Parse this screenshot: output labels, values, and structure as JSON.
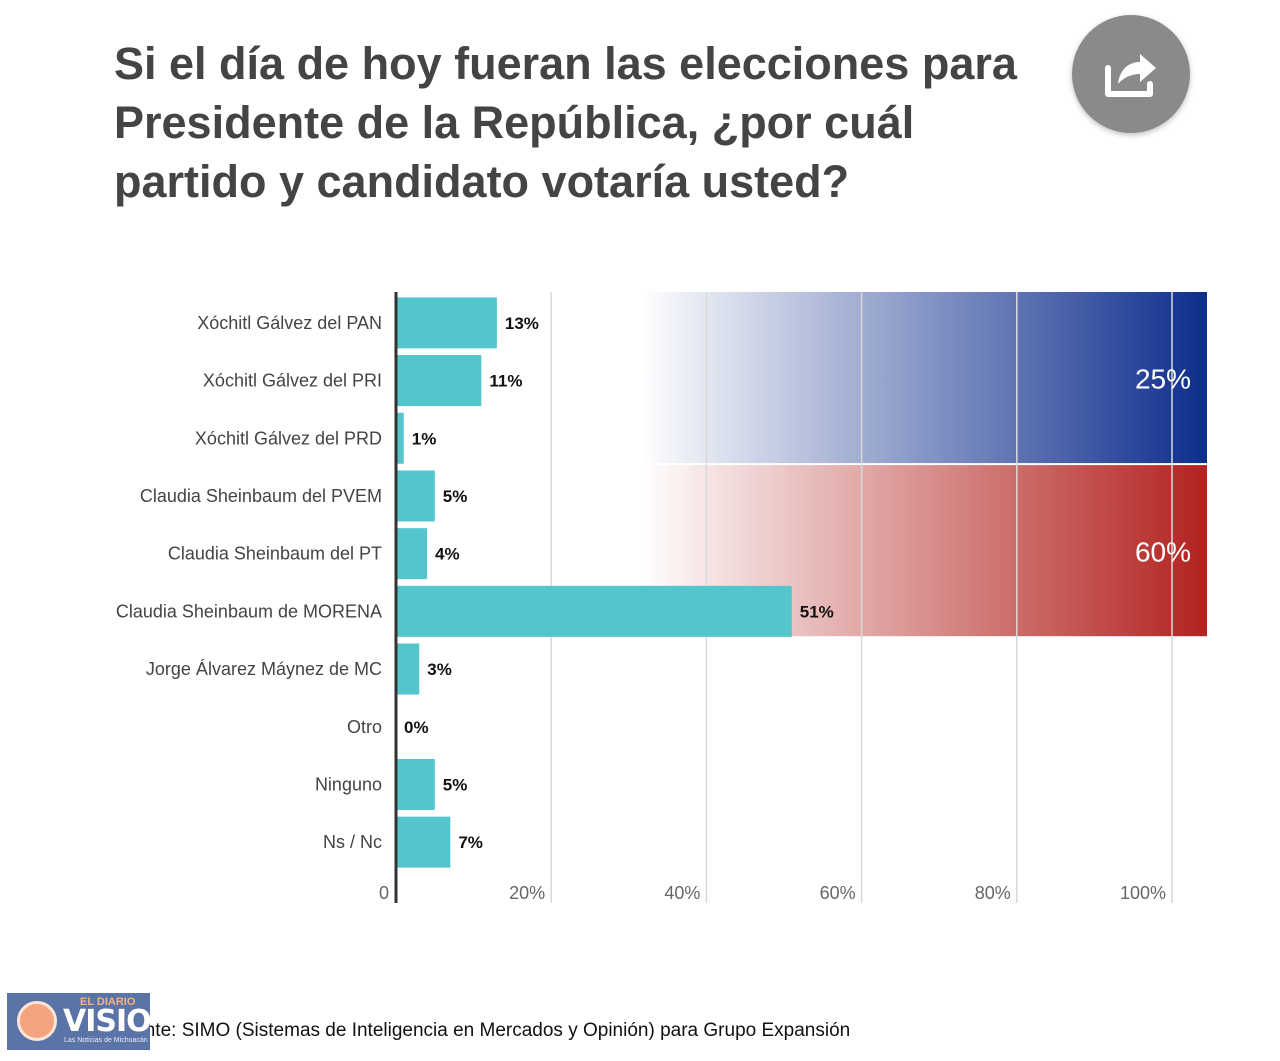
{
  "header": {
    "title": "Si el día de hoy fueran las elecciones para Presidente de la República, ¿por cuál partido y candidato votaría usted?"
  },
  "share_icon": "share-icon",
  "chart_data": {
    "type": "bar",
    "orientation": "horizontal",
    "title": "Si el día de hoy fueran las elecciones para Presidente de la República, ¿por cuál partido y candidato votaría usted?",
    "categories": [
      "Xóchitl Gálvez del PAN",
      "Xóchitl Gálvez del PRI",
      "Xóchitl Gálvez del PRD",
      "Claudia Sheinbaum del PVEM",
      "Claudia Sheinbaum del PT",
      "Claudia Sheinbaum de MORENA",
      "Jorge Álvarez Máynez de MC",
      "Otro",
      "Ninguno",
      "Ns / Nc"
    ],
    "values": [
      13,
      11,
      1,
      5,
      4,
      51,
      3,
      0,
      5,
      7
    ],
    "value_labels": [
      "13%",
      "11%",
      "1%",
      "5%",
      "4%",
      "51%",
      "3%",
      "0%",
      "5%",
      "7%"
    ],
    "bar_color": "#53c5cc",
    "xlim": [
      0,
      100
    ],
    "ticks": [
      0,
      20,
      40,
      60,
      80,
      100
    ],
    "tick_labels": [
      "0",
      "20%",
      "40%",
      "60%",
      "80%",
      "100%"
    ],
    "grid": true,
    "groups": [
      {
        "label": "25%",
        "total": 25,
        "from": 0,
        "to": 2,
        "color": "#0d2d8c"
      },
      {
        "label": "60%",
        "total": 60,
        "from": 3,
        "to": 5,
        "color": "#b2221f"
      }
    ]
  },
  "footer": {
    "source": "Fuente: SIMO (Sistemas de Inteligencia en Mercados y Opinión) para Grupo Expansión"
  },
  "logo": {
    "top_text": "EL DIARIO",
    "main_text": "VISION",
    "tagline": "Las Noticias de Michoacán"
  }
}
